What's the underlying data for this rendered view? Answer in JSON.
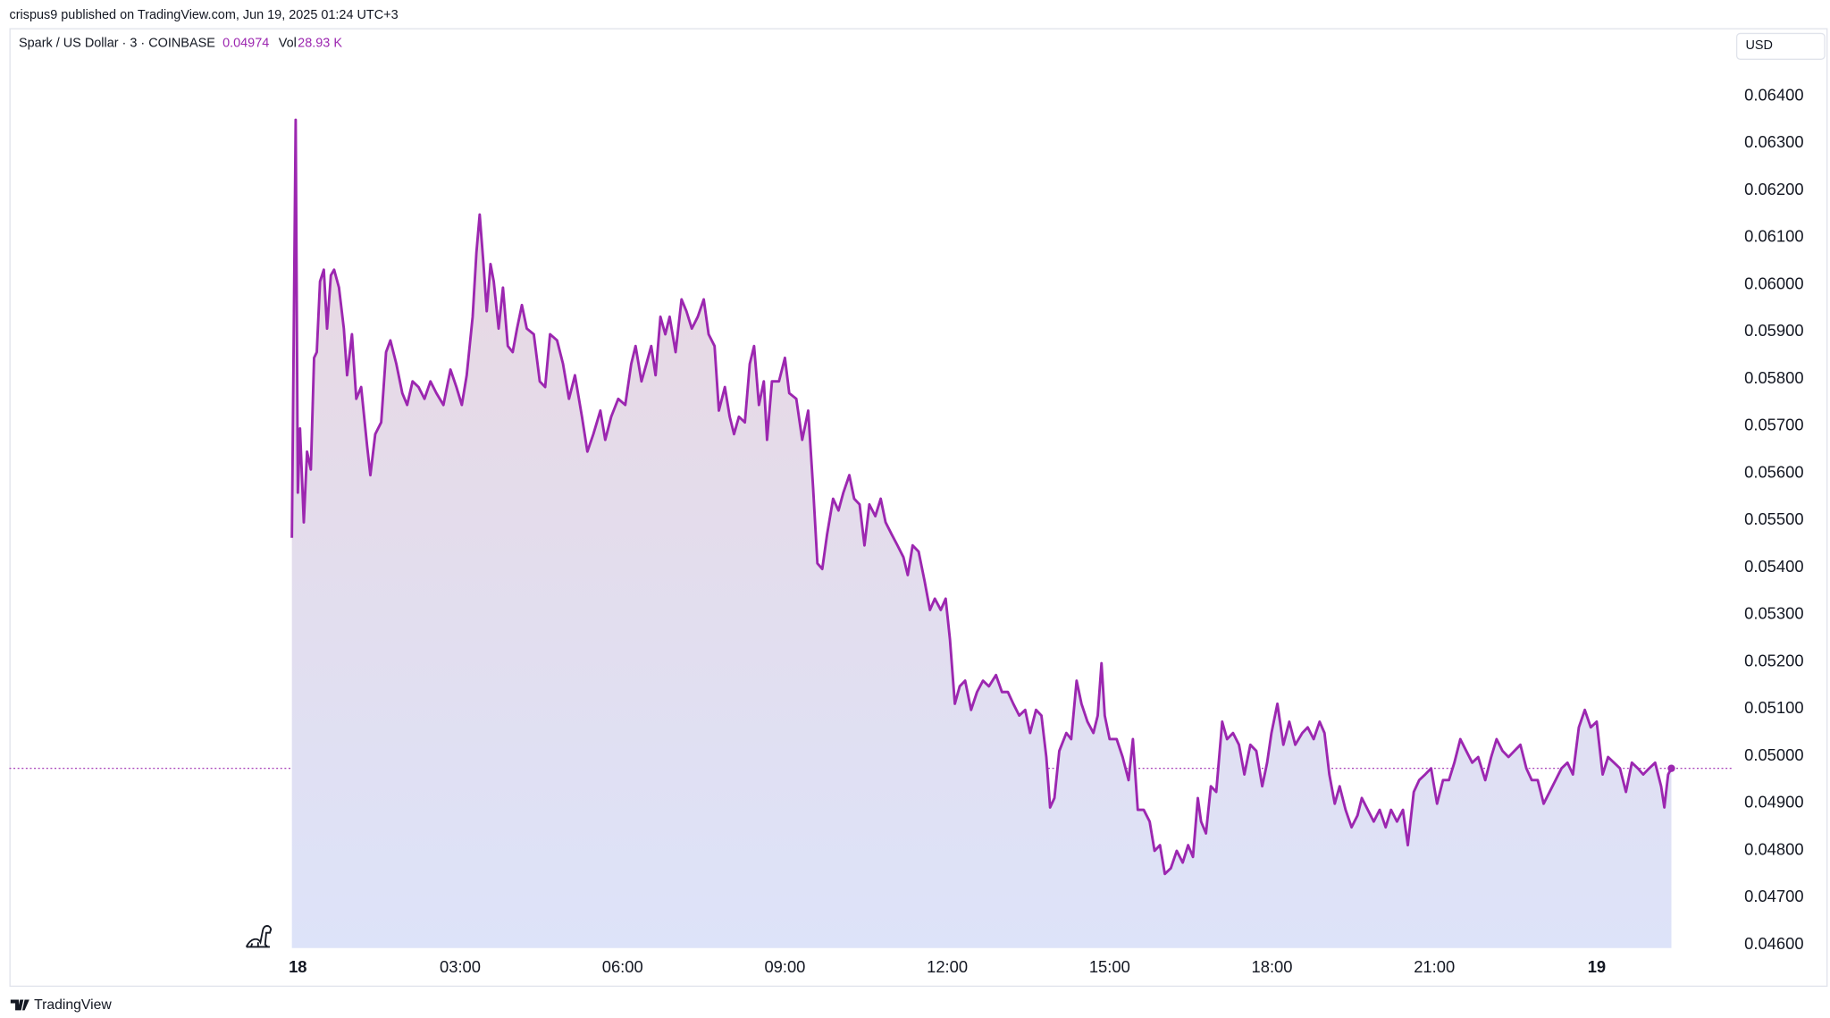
{
  "header": {
    "published": "crispus9 published on TradingView.com, Jun 19, 2025 01:24 UTC+3"
  },
  "footer": {
    "brand": "TradingView"
  },
  "chart_data": {
    "type": "line",
    "currency": "USD",
    "last_price": 0.04974,
    "volume_label": "Vol",
    "volume": "28.93 K",
    "series": [
      {
        "name": "Spark / US Dollar · 3 · COINBASE",
        "color": "#9c27b0",
        "x": [
          -0.11,
          -0.04,
          0,
          0.04,
          0.11,
          0.17,
          0.24,
          0.3,
          0.35,
          0.41,
          0.48,
          0.54,
          0.61,
          0.67,
          0.76,
          0.85,
          0.91,
          1.0,
          1.08,
          1.17,
          1.28,
          1.34,
          1.43,
          1.54,
          1.63,
          1.71,
          1.82,
          1.93,
          2.02,
          2.12,
          2.23,
          2.34,
          2.45,
          2.56,
          2.69,
          2.82,
          2.93,
          3.03,
          3.12,
          3.23,
          3.3,
          3.36,
          3.43,
          3.49,
          3.56,
          3.62,
          3.71,
          3.79,
          3.88,
          3.97,
          4.05,
          4.14,
          4.23,
          4.36,
          4.47,
          4.57,
          4.66,
          4.79,
          4.9,
          5.01,
          5.12,
          5.25,
          5.35,
          5.46,
          5.59,
          5.68,
          5.79,
          5.92,
          6.05,
          6.16,
          6.24,
          6.35,
          6.44,
          6.53,
          6.61,
          6.7,
          6.79,
          6.87,
          6.98,
          7.09,
          7.18,
          7.28,
          7.39,
          7.5,
          7.59,
          7.7,
          7.78,
          7.89,
          7.98,
          8.06,
          8.15,
          8.26,
          8.35,
          8.43,
          8.52,
          8.61,
          8.67,
          8.76,
          8.89,
          9.0,
          9.08,
          9.21,
          9.32,
          9.43,
          9.52,
          9.6,
          9.69,
          9.78,
          9.89,
          9.99,
          10.08,
          10.19,
          10.28,
          10.38,
          10.47,
          10.56,
          10.67,
          10.77,
          10.86,
          10.97,
          11.08,
          11.19,
          11.27,
          11.36,
          11.47,
          11.58,
          11.68,
          11.77,
          11.88,
          11.97,
          12.05,
          12.14,
          12.23,
          12.33,
          12.44,
          12.55,
          12.66,
          12.77,
          12.9,
          13.01,
          13.12,
          13.22,
          13.33,
          13.44,
          13.53,
          13.64,
          13.74,
          13.83,
          13.9,
          13.98,
          14.07,
          14.2,
          14.29,
          14.39,
          14.48,
          14.59,
          14.7,
          14.78,
          14.85,
          14.91,
          15.0,
          15.13,
          15.24,
          15.35,
          15.43,
          15.52,
          15.63,
          15.74,
          15.83,
          15.93,
          16.02,
          16.13,
          16.24,
          16.35,
          16.45,
          16.54,
          16.63,
          16.69,
          16.78,
          16.87,
          16.97,
          17.08,
          17.17,
          17.28,
          17.39,
          17.49,
          17.6,
          17.71,
          17.82,
          17.91,
          17.99,
          18.1,
          18.21,
          18.32,
          18.43,
          18.56,
          18.66,
          18.77,
          18.88,
          18.97,
          19.06,
          19.16,
          19.25,
          19.36,
          19.47,
          19.58,
          19.66,
          19.77,
          19.88,
          19.99,
          20.1,
          20.2,
          20.31,
          20.42,
          20.51,
          20.62,
          20.72,
          20.83,
          20.94,
          21.05,
          21.16,
          21.27,
          21.37,
          21.48,
          21.59,
          21.7,
          21.81,
          21.94,
          22.05,
          22.15,
          22.26,
          22.37,
          22.48,
          22.59,
          22.7,
          22.8,
          22.91,
          23.02,
          23.13,
          23.24,
          23.35,
          23.46,
          23.56,
          23.67,
          23.78,
          23.89,
          24.0,
          24.11,
          24.21,
          24.32,
          24.43,
          24.54,
          24.65,
          24.76,
          24.86,
          24.97,
          25.08,
          25.19,
          25.25,
          25.32,
          25.38
        ],
        "values": [
          0.05463,
          0.0635,
          0.05559,
          0.05695,
          0.05496,
          0.05646,
          0.05608,
          0.05845,
          0.05857,
          0.06007,
          0.06032,
          0.05907,
          0.0602,
          0.06032,
          0.05994,
          0.05907,
          0.05808,
          0.05895,
          0.05758,
          0.05783,
          0.05658,
          0.05596,
          0.05683,
          0.05708,
          0.05857,
          0.05882,
          0.05832,
          0.0577,
          0.05745,
          0.05795,
          0.05783,
          0.05758,
          0.05795,
          0.0577,
          0.05745,
          0.0582,
          0.05783,
          0.05745,
          0.05808,
          0.05932,
          0.06069,
          0.06149,
          0.06044,
          0.05944,
          0.06044,
          0.06007,
          0.05907,
          0.05994,
          0.0587,
          0.05857,
          0.05907,
          0.05957,
          0.05907,
          0.05895,
          0.05795,
          0.05783,
          0.05895,
          0.05882,
          0.05832,
          0.05758,
          0.05808,
          0.0572,
          0.05646,
          0.05683,
          0.05733,
          0.05671,
          0.0572,
          0.05758,
          0.05745,
          0.05832,
          0.0587,
          0.05795,
          0.05832,
          0.0587,
          0.05808,
          0.05932,
          0.05895,
          0.05932,
          0.05857,
          0.05969,
          0.05944,
          0.05907,
          0.05932,
          0.05969,
          0.05895,
          0.0587,
          0.05733,
          0.05783,
          0.0572,
          0.05683,
          0.0572,
          0.05708,
          0.05832,
          0.0587,
          0.05745,
          0.05795,
          0.05671,
          0.05795,
          0.05795,
          0.05845,
          0.0577,
          0.05758,
          0.05671,
          0.05733,
          0.05571,
          0.05409,
          0.05397,
          0.05471,
          0.05546,
          0.05521,
          0.05559,
          0.05596,
          0.05546,
          0.05534,
          0.05447,
          0.05534,
          0.05509,
          0.05546,
          0.05496,
          0.05471,
          0.05447,
          0.05422,
          0.05384,
          0.05447,
          0.05434,
          0.05372,
          0.0531,
          0.05334,
          0.0531,
          0.05334,
          0.05247,
          0.05111,
          0.05148,
          0.0516,
          0.05098,
          0.05136,
          0.0516,
          0.05148,
          0.05172,
          0.05136,
          0.05136,
          0.05111,
          0.05086,
          0.05098,
          0.05049,
          0.05098,
          0.05086,
          0.04998,
          0.04891,
          0.04911,
          0.05011,
          0.05049,
          0.05036,
          0.0516,
          0.05111,
          0.05073,
          0.05049,
          0.05086,
          0.05197,
          0.05086,
          0.05036,
          0.05036,
          0.04998,
          0.04949,
          0.05036,
          0.04886,
          0.04886,
          0.04861,
          0.04799,
          0.04811,
          0.0475,
          0.04762,
          0.04799,
          0.04774,
          0.04811,
          0.04786,
          0.04911,
          0.04861,
          0.04836,
          0.04936,
          0.04924,
          0.05073,
          0.05036,
          0.05049,
          0.05024,
          0.04961,
          0.05024,
          0.05011,
          0.04936,
          0.04986,
          0.05049,
          0.05111,
          0.05024,
          0.05073,
          0.05024,
          0.05049,
          0.05061,
          0.05036,
          0.05073,
          0.05049,
          0.04961,
          0.04899,
          0.04936,
          0.04886,
          0.04849,
          0.04874,
          0.04911,
          0.04886,
          0.04861,
          0.04886,
          0.04849,
          0.04886,
          0.04861,
          0.04886,
          0.04811,
          0.04924,
          0.04949,
          0.04961,
          0.04974,
          0.04899,
          0.04949,
          0.04949,
          0.04986,
          0.05036,
          0.05011,
          0.04986,
          0.04998,
          0.04949,
          0.04998,
          0.05036,
          0.05011,
          0.04998,
          0.05011,
          0.05024,
          0.04974,
          0.04949,
          0.04949,
          0.04899,
          0.04924,
          0.04949,
          0.04974,
          0.04986,
          0.04961,
          0.05061,
          0.05098,
          0.05061,
          0.05073,
          0.04961,
          0.04998,
          0.04986,
          0.04974,
          0.04924,
          0.04986,
          0.04974,
          0.04961,
          0.04974,
          0.04986,
          0.04936,
          0.04891,
          0.04961,
          0.04974
        ]
      }
    ],
    "xlim": [
      -5.33,
      26.49
    ],
    "ylim": [
      0.045927,
      0.065444
    ],
    "xticks": [
      {
        "value": 0,
        "label": "18"
      },
      {
        "value": 3,
        "label": "03:00"
      },
      {
        "value": 6,
        "label": "06:00"
      },
      {
        "value": 9,
        "label": "09:00"
      },
      {
        "value": 12,
        "label": "12:00"
      },
      {
        "value": 15,
        "label": "15:00"
      },
      {
        "value": 18,
        "label": "18:00"
      },
      {
        "value": 21,
        "label": "21:00"
      },
      {
        "value": 24,
        "label": "19"
      }
    ],
    "yticks": [
      {
        "value": 0.046,
        "label": "0.04600"
      },
      {
        "value": 0.047,
        "label": "0.04700"
      },
      {
        "value": 0.048,
        "label": "0.04800"
      },
      {
        "value": 0.049,
        "label": "0.04900"
      },
      {
        "value": 0.05,
        "label": "0.05000"
      },
      {
        "value": 0.051,
        "label": "0.05100"
      },
      {
        "value": 0.052,
        "label": "0.05200"
      },
      {
        "value": 0.053,
        "label": "0.05300"
      },
      {
        "value": 0.054,
        "label": "0.05400"
      },
      {
        "value": 0.055,
        "label": "0.05500"
      },
      {
        "value": 0.056,
        "label": "0.05600"
      },
      {
        "value": 0.057,
        "label": "0.05700"
      },
      {
        "value": 0.058,
        "label": "0.05800"
      },
      {
        "value": 0.059,
        "label": "0.05900"
      },
      {
        "value": 0.06,
        "label": "0.06000"
      },
      {
        "value": 0.061,
        "label": "0.06100"
      },
      {
        "value": 0.062,
        "label": "0.06200"
      },
      {
        "value": 0.063,
        "label": "0.06300"
      },
      {
        "value": 0.064,
        "label": "0.06400"
      }
    ],
    "grid": false
  }
}
